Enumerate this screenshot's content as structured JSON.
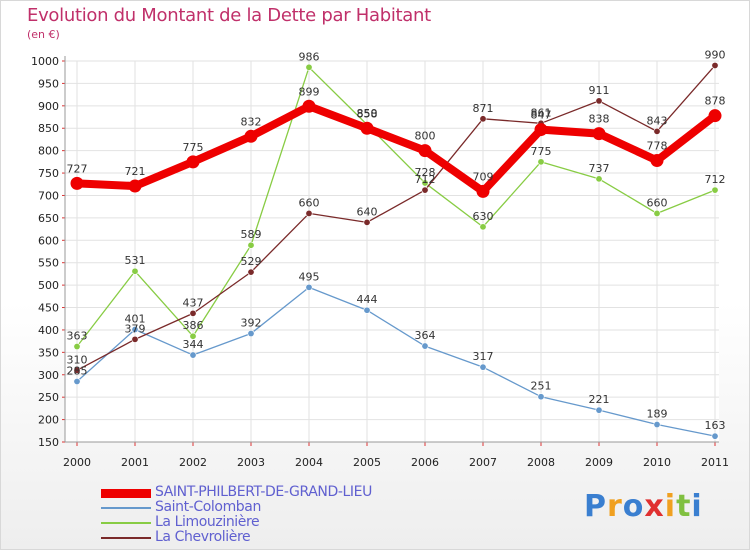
{
  "header": {
    "title": "Evolution du Montant de la Dette par Habitant",
    "unit": "(en €)"
  },
  "logo": {
    "text": "Proxiti"
  },
  "chart_data": {
    "type": "line",
    "categories": [
      "2000",
      "2001",
      "2002",
      "2003",
      "2004",
      "2005",
      "2006",
      "2007",
      "2008",
      "2009",
      "2010",
      "2011"
    ],
    "ylim": [
      150,
      1000
    ],
    "yticks": [
      150,
      200,
      250,
      300,
      350,
      400,
      450,
      500,
      550,
      600,
      650,
      700,
      750,
      800,
      850,
      900,
      950,
      1000
    ],
    "grid": true,
    "legend_position": "bottom-left",
    "series": [
      {
        "name": "SAINT-PHILBERT-DE-GRAND-LIEU",
        "color": "#ee0000",
        "weight": "thick",
        "values": [
          727,
          721,
          775,
          832,
          899,
          850,
          800,
          709,
          847,
          838,
          778,
          878
        ]
      },
      {
        "name": "Saint-Colomban",
        "color": "#6699cc",
        "weight": "thin",
        "values": [
          285,
          401,
          344,
          392,
          495,
          444,
          364,
          317,
          251,
          221,
          189,
          163
        ]
      },
      {
        "name": "La Limouzinière",
        "color": "#88cc44",
        "weight": "thin",
        "values": [
          363,
          531,
          386,
          589,
          986,
          858,
          728,
          630,
          775,
          737,
          660,
          712
        ]
      },
      {
        "name": "La Chevrolière",
        "color": "#7a2a2a",
        "weight": "thin",
        "values": [
          310,
          379,
          437,
          529,
          660,
          640,
          712,
          871,
          861,
          911,
          843,
          990
        ]
      }
    ]
  }
}
